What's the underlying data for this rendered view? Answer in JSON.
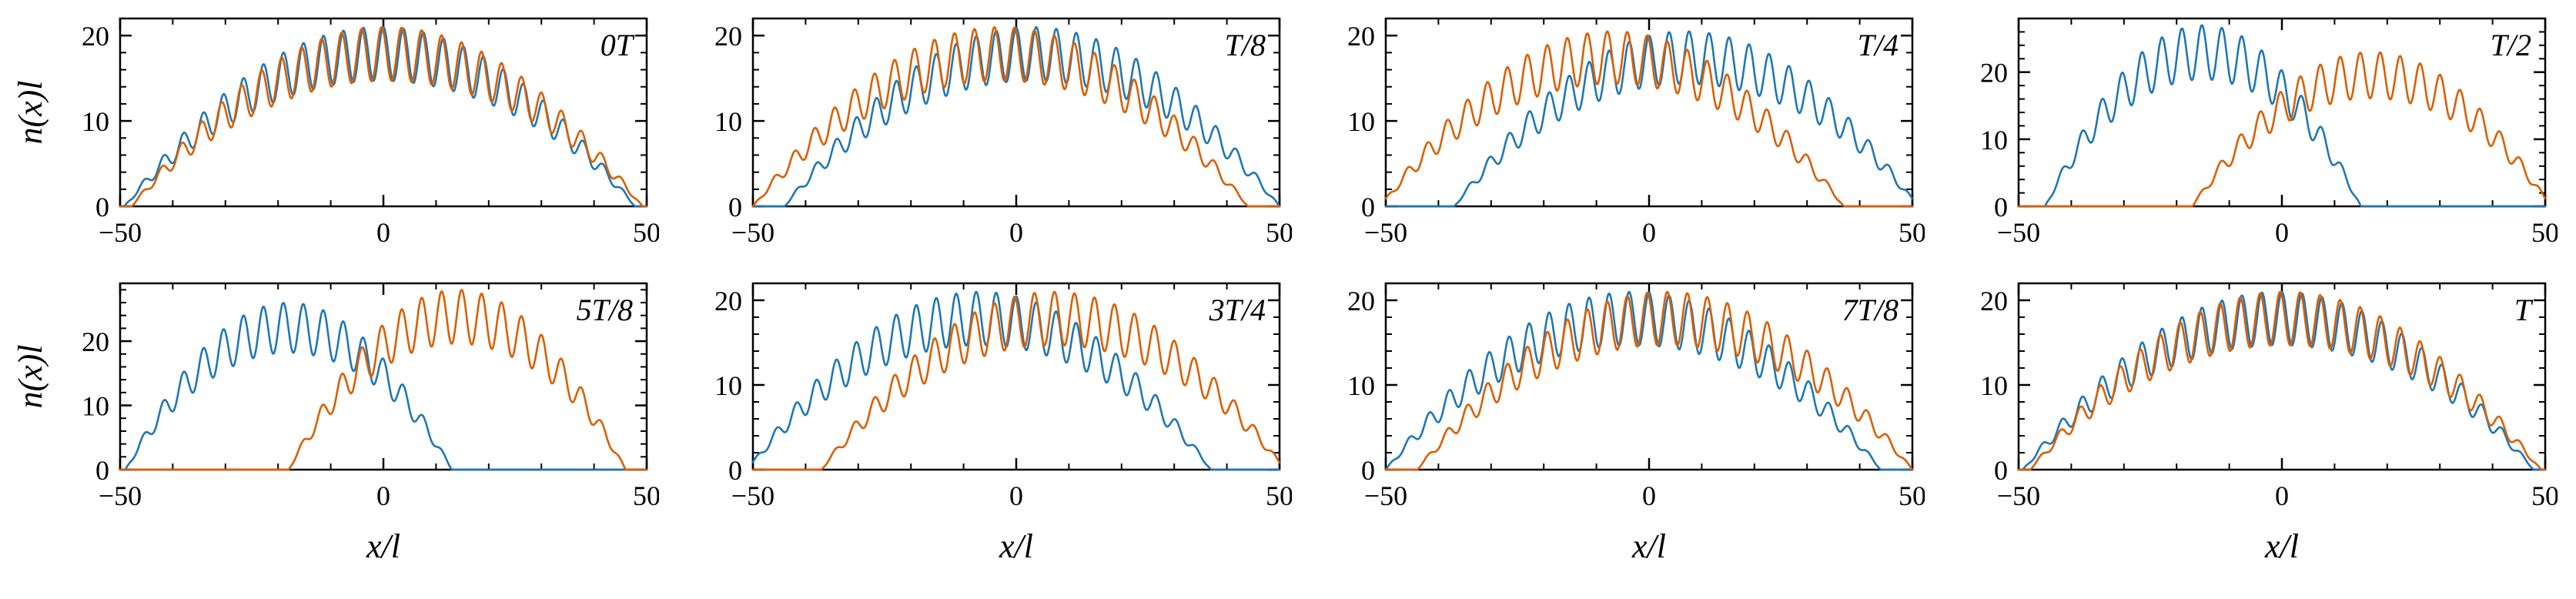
{
  "figure": {
    "description": "Density profiles n(x)l of two components versus x/l at eight times during one oscillation period T",
    "background_color": "#ffffff"
  },
  "chart_data": {
    "type": "line",
    "layout": {
      "rows": 2,
      "cols": 4,
      "grid": false,
      "legend": "none",
      "frame": "box",
      "ticks": "inward-all-sides"
    },
    "xlabel": "x/l",
    "ylabel": "n(x)l",
    "x_range": [
      -50,
      50
    ],
    "x_tick_values": [
      -50,
      0,
      50
    ],
    "x_tick_labels": [
      "−50",
      "0",
      "50"
    ],
    "x_minor_step": 10,
    "y_tick_values": [
      0,
      10,
      20
    ],
    "y_tick_labels": [
      "0",
      "10",
      "20"
    ],
    "y_minor_step": 2,
    "axis_color": "#000000",
    "oscillation": {
      "wavelength": 3.8,
      "depth": 0.3,
      "note": "fast lattice-period density modulation under a smooth Thomas-Fermi-like envelope peak*(1-((x-center)/halfwidth)^2)"
    },
    "panels": [
      {
        "label": "0T",
        "ylim": [
          0,
          22
        ],
        "series": [
          {
            "name": "blue-component",
            "color": "#1f77b4",
            "center": -0.7,
            "peak": 21,
            "halfwidth": 48.5,
            "phase": 3.14
          },
          {
            "name": "orange-component",
            "color": "#d95f02",
            "center": 0.7,
            "peak": 21,
            "halfwidth": 48.5,
            "phase": 3.7
          }
        ]
      },
      {
        "label": "T/8",
        "ylim": [
          0,
          22
        ],
        "series": [
          {
            "name": "blue-component",
            "color": "#1f77b4",
            "center": 3,
            "peak": 21,
            "halfwidth": 47,
            "phase": 3.14
          },
          {
            "name": "orange-component",
            "color": "#d95f02",
            "center": -3,
            "peak": 21,
            "halfwidth": 47,
            "phase": 3.7
          }
        ]
      },
      {
        "label": "T/4",
        "ylim": [
          0,
          22
        ],
        "series": [
          {
            "name": "blue-component",
            "color": "#1f77b4",
            "center": 7,
            "peak": 20.5,
            "halfwidth": 44,
            "phase": 3.14
          },
          {
            "name": "orange-component",
            "color": "#d95f02",
            "center": -7,
            "peak": 20.5,
            "halfwidth": 44,
            "phase": 3.7
          }
        ]
      },
      {
        "label": "T/2",
        "ylim": [
          0,
          28
        ],
        "series": [
          {
            "name": "blue-component",
            "color": "#1f77b4",
            "center": -15,
            "peak": 27,
            "halfwidth": 30,
            "phase": 3.14
          },
          {
            "name": "orange-component",
            "color": "#d95f02",
            "center": 17,
            "peak": 23,
            "halfwidth": 34,
            "phase": 3.7
          }
        ]
      },
      {
        "label": "5T/8",
        "ylim": [
          0,
          29
        ],
        "series": [
          {
            "name": "blue-component",
            "color": "#1f77b4",
            "center": -18,
            "peak": 26,
            "halfwidth": 31,
            "phase": 3.14
          },
          {
            "name": "orange-component",
            "color": "#d95f02",
            "center": 14,
            "peak": 28,
            "halfwidth": 32,
            "phase": 3.7
          }
        ]
      },
      {
        "label": "3T/4",
        "ylim": [
          0,
          22
        ],
        "series": [
          {
            "name": "blue-component",
            "color": "#1f77b4",
            "center": -7,
            "peak": 21,
            "halfwidth": 44,
            "phase": 3.14
          },
          {
            "name": "orange-component",
            "color": "#d95f02",
            "center": 7,
            "peak": 21,
            "halfwidth": 44,
            "phase": 3.7
          }
        ]
      },
      {
        "label": "7T/8",
        "ylim": [
          0,
          22
        ],
        "series": [
          {
            "name": "blue-component",
            "color": "#1f77b4",
            "center": -3,
            "peak": 21,
            "halfwidth": 47,
            "phase": 3.14
          },
          {
            "name": "orange-component",
            "color": "#d95f02",
            "center": 3,
            "peak": 21,
            "halfwidth": 47,
            "phase": 3.7
          }
        ]
      },
      {
        "label": "T",
        "ylim": [
          0,
          22
        ],
        "series": [
          {
            "name": "blue-component",
            "color": "#1f77b4",
            "center": -0.7,
            "peak": 21,
            "halfwidth": 48.5,
            "phase": 3.14
          },
          {
            "name": "orange-component",
            "color": "#d95f02",
            "center": 0.7,
            "peak": 21,
            "halfwidth": 48.5,
            "phase": 3.7
          }
        ]
      }
    ]
  }
}
